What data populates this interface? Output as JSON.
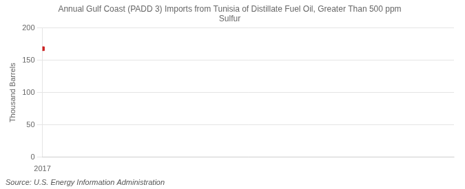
{
  "chart_data": {
    "type": "scatter",
    "title": "Annual Gulf Coast (PADD 3) Imports from Tunisia of Distillate Fuel Oil, Greater Than 500 ppm\nSulfur",
    "ylabel": "Thousand Barrels",
    "annotations": [
      "Source: U.S. Energy Information Administration"
    ],
    "x": [
      2017
    ],
    "values": [
      168
    ],
    "color": "#cc2222",
    "marker": "square",
    "xlim": [
      2017,
      2022
    ],
    "xticks": [
      2017
    ],
    "ylim": [
      0,
      200
    ],
    "yticks": [
      0,
      50,
      100,
      150,
      200
    ],
    "grid": "y"
  }
}
